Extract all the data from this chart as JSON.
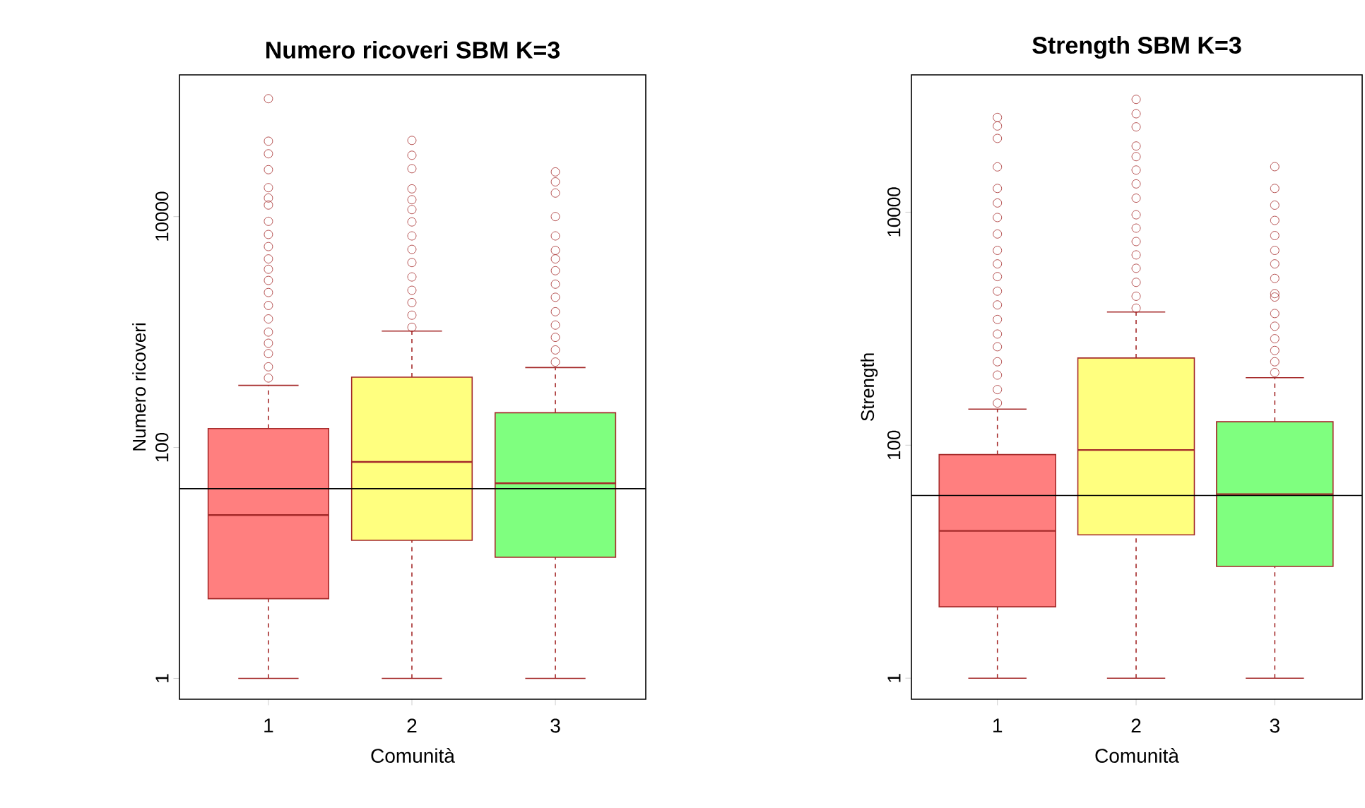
{
  "chart_data": [
    {
      "type": "box",
      "title": "Numero ricoveri SBM K=3",
      "xlabel": "Comunità",
      "ylabel": "Numero ricoveri",
      "log": "y",
      "categories": [
        "1",
        "2",
        "3"
      ],
      "colors": [
        "#ff7f7f",
        "#ffff7f",
        "#7fff7f"
      ],
      "boxes": [
        {
          "low": 1,
          "q1": 4.9,
          "median": 26,
          "q3": 146,
          "high": 345,
          "outliers": [
            400,
            500,
            650,
            800,
            1000,
            1300,
            1700,
            2200,
            2800,
            3500,
            4300,
            5500,
            7000,
            9100,
            12600,
            14500,
            17800,
            25500,
            35000,
            45000,
            105000
          ]
        },
        {
          "low": 1,
          "q1": 15.7,
          "median": 75,
          "q3": 407,
          "high": 1020,
          "outliers": [
            1100,
            1400,
            1800,
            2300,
            3000,
            4000,
            5200,
            6800,
            9000,
            11500,
            14000,
            17400,
            26000,
            34000,
            45700
          ]
        },
        {
          "low": 1,
          "q1": 11.2,
          "median": 49,
          "q3": 200,
          "high": 493,
          "outliers": [
            550,
            700,
            900,
            1150,
            1500,
            2000,
            2600,
            3400,
            4300,
            5100,
            6800,
            10000,
            16000,
            20000,
            24400
          ]
        }
      ],
      "ylim": [
        0.66,
        169000
      ],
      "yticks": [
        1,
        100,
        10000
      ],
      "ref_lines": [
        {
          "axis": "y",
          "value": 44,
          "color": "#000000"
        }
      ]
    },
    {
      "type": "box",
      "title": "Strength SBM K=3",
      "xlabel": "Comunità",
      "ylabel": "Strength",
      "log": "y",
      "categories": [
        "1",
        "2",
        "3"
      ],
      "colors": [
        "#ff7f7f",
        "#ffff7f",
        "#7fff7f"
      ],
      "boxes": [
        {
          "low": 1,
          "q1": 4.1,
          "median": 18.4,
          "q3": 83,
          "high": 204,
          "outliers": [
            230,
            300,
            400,
            520,
            700,
            900,
            1200,
            1600,
            2100,
            2800,
            3600,
            4700,
            6500,
            9000,
            12000,
            16000,
            24500,
            43000,
            55000,
            65000
          ]
        },
        {
          "low": 1,
          "q1": 17,
          "median": 91,
          "q3": 560,
          "high": 1390,
          "outliers": [
            1500,
            1900,
            2500,
            3300,
            4300,
            5600,
            7300,
            9500,
            13200,
            17500,
            23000,
            30000,
            37000,
            54000,
            70000,
            93000
          ]
        },
        {
          "low": 1,
          "q1": 9.1,
          "median": 38,
          "q3": 159,
          "high": 380,
          "outliers": [
            420,
            520,
            650,
            820,
            1050,
            1350,
            1870,
            2000,
            2700,
            3600,
            4700,
            6300,
            8500,
            11500,
            16000,
            24600
          ]
        }
      ],
      "ylim": [
        0.66,
        151000
      ],
      "yticks": [
        1,
        100,
        10000
      ],
      "ref_lines": [
        {
          "axis": "y",
          "value": 37,
          "color": "#000000"
        }
      ]
    }
  ]
}
